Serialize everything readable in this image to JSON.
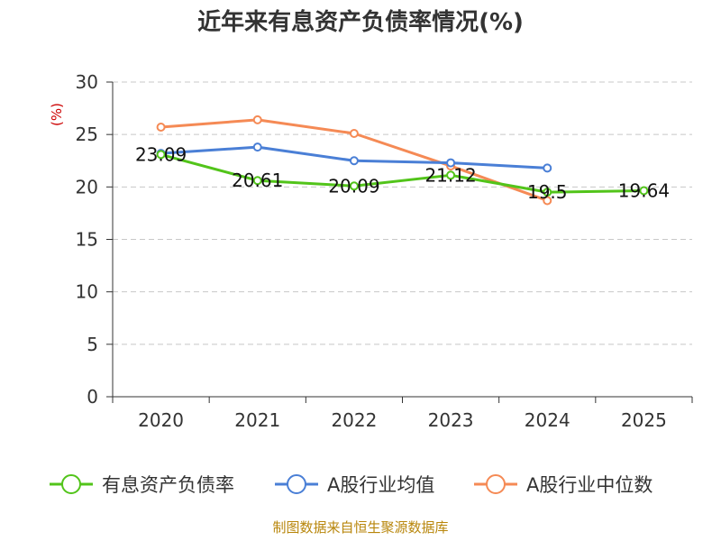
{
  "chart_data": {
    "type": "line",
    "title": "近年来有息资产负债率情况(%)",
    "ylabel": "(%)",
    "categories": [
      "2020",
      "2021",
      "2022",
      "2023",
      "2024",
      "2025"
    ],
    "ylim": [
      0,
      30
    ],
    "yticks": [
      0,
      5,
      10,
      15,
      20,
      25,
      30
    ],
    "grid": true,
    "legend_position": "bottom",
    "series": [
      {
        "name": "有息资产负债率",
        "color": "#52c41a",
        "values": [
          23.09,
          20.61,
          20.09,
          21.12,
          19.5,
          19.64
        ],
        "labels": [
          "23.09",
          "20.61",
          "20.09",
          "21.12",
          "19.5",
          "19.64"
        ]
      },
      {
        "name": "A股行业均值",
        "color": "#4a7fd6",
        "values": [
          23.2,
          23.8,
          22.5,
          22.3,
          21.8,
          null
        ]
      },
      {
        "name": "A股行业中位数",
        "color": "#f58a55",
        "values": [
          25.7,
          26.4,
          25.1,
          22.0,
          18.7,
          null
        ]
      }
    ]
  },
  "footer": {
    "source": "制图数据来自恒生聚源数据库"
  }
}
